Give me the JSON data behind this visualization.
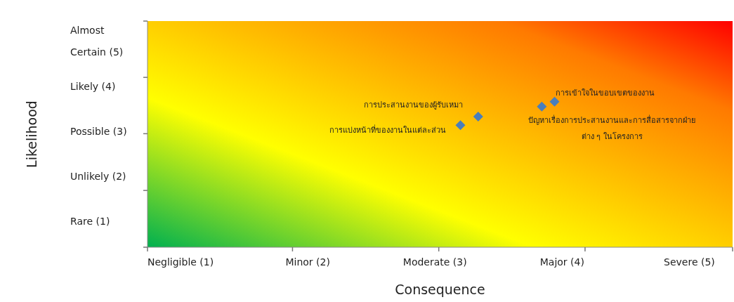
{
  "chart_data": {
    "type": "scatter",
    "xlabel": "Consequence",
    "ylabel": "Likelihood",
    "xlim": [
      0.74,
      5.34
    ],
    "ylim": [
      0.44,
      5.46
    ],
    "xticks": [
      {
        "value": 0.74,
        "label": null
      },
      {
        "value": 1.88,
        "label": null
      },
      {
        "value": 3.03,
        "label": null
      },
      {
        "value": 4.18,
        "label": null
      },
      {
        "value": 5.34,
        "label": null
      },
      {
        "value": 1,
        "label": "Negligible  (1)"
      },
      {
        "value": 2,
        "label": "Minor (2)"
      },
      {
        "value": 3,
        "label": "Moderate (3)"
      },
      {
        "value": 4,
        "label": "Major (4)"
      },
      {
        "value": 5,
        "label": "Severe (5)"
      }
    ],
    "yticks": [
      {
        "value": 0.44,
        "label": null
      },
      {
        "value": 1.7,
        "label": null
      },
      {
        "value": 2.96,
        "label": null
      },
      {
        "value": 4.21,
        "label": null
      },
      {
        "value": 5.46,
        "label": null
      },
      {
        "value": 1,
        "label": "Rare (1)"
      },
      {
        "value": 2,
        "label": "Unlikely (2)"
      },
      {
        "value": 3,
        "label": "Possible (3)"
      },
      {
        "value": 4,
        "label": "Likely (4)"
      },
      {
        "value": 5,
        "label": "Almost\nCertain (5)"
      }
    ],
    "x": [
      3.2,
      3.34,
      3.84,
      3.94
    ],
    "series": [
      {
        "color": "#4a7ebb",
        "values": [
          3.15,
          3.34,
          3.56,
          3.67
        ]
      }
    ],
    "marker": "diamond",
    "annotations": [
      {
        "text": "การแบ่งหน้าที่ของงานในแต่ละส่วน",
        "x": 3.2,
        "y": 3.15
      },
      {
        "text": "การประสานงานของผู้รับเหมา",
        "x": 3.34,
        "y": 3.34
      },
      {
        "text": "ปัญหาเรื่องการประสานงานและการสื่อสารจากฝ่าย\nต่าง ๆ ในโครงการ",
        "x": 3.84,
        "y": 3.56
      },
      {
        "text": "การเข้าใจในขอบเขตของงาน",
        "x": 3.94,
        "y": 3.67
      }
    ]
  }
}
